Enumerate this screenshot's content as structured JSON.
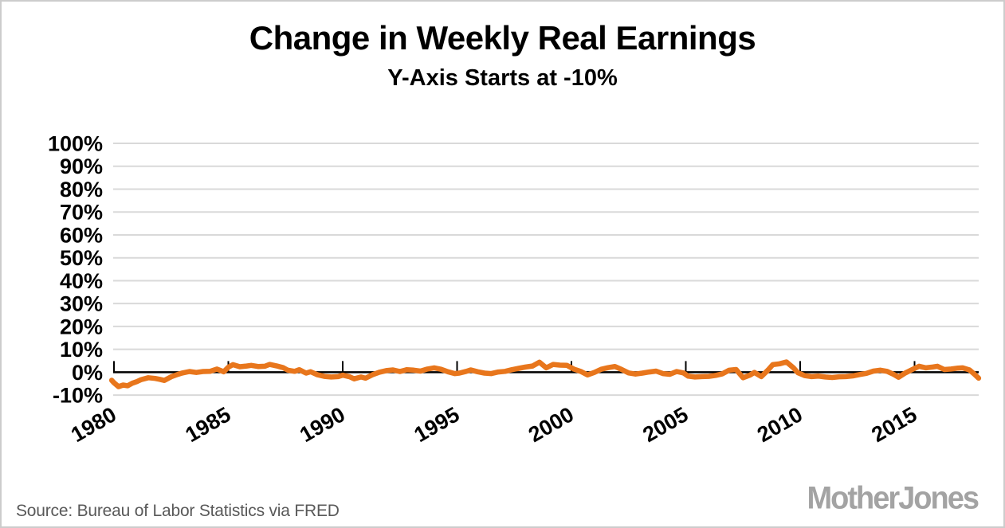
{
  "header": {
    "title": "Change in Weekly Real Earnings",
    "subtitle": "Y-Axis Starts at -10%",
    "text_color": "#000000"
  },
  "footer": {
    "source": "Source: Bureau of Labor Statistics via FRED",
    "source_color": "#595959",
    "logo": "MotherJones",
    "logo_color": "#a3a3a3"
  },
  "chart_data": {
    "type": "line",
    "title": "Change in Weekly Real Earnings",
    "subtitle": "Y-Axis Starts at -10%",
    "series_name": "12-month change in weekly real earnings (%)",
    "line_color": "#e8761c",
    "line_width": 6.5,
    "gridline_color": "#d9d9d9",
    "axis_color": "#000000",
    "label_color": "#000000",
    "grid": "horizontal",
    "legend": "none",
    "xlim": [
      1979.9,
      2017.9
    ],
    "ylim": [
      -10,
      100
    ],
    "y_ticks": [
      100,
      90,
      80,
      70,
      60,
      50,
      40,
      30,
      20,
      10,
      0,
      -10
    ],
    "y_tick_labels": [
      "100%",
      "90%",
      "80%",
      "70%",
      "60%",
      "50%",
      "40%",
      "30%",
      "20%",
      "10%",
      "0%",
      "-10%"
    ],
    "x_ticks": [
      1980,
      1985,
      1990,
      1995,
      2000,
      2005,
      2010,
      2015
    ],
    "x_tick_labels": [
      "1980",
      "1985",
      "1990",
      "1995",
      "2000",
      "2005",
      "2010",
      "2015"
    ],
    "points": [
      [
        1979.9,
        -3.5
      ],
      [
        1980.0,
        -4.6
      ],
      [
        1980.2,
        -6.3
      ],
      [
        1980.4,
        -5.6
      ],
      [
        1980.6,
        -5.9
      ],
      [
        1980.8,
        -4.8
      ],
      [
        1981.0,
        -4.1
      ],
      [
        1981.2,
        -3.2
      ],
      [
        1981.5,
        -2.4
      ],
      [
        1981.8,
        -2.7
      ],
      [
        1982.0,
        -3.1
      ],
      [
        1982.2,
        -3.6
      ],
      [
        1982.5,
        -2.0
      ],
      [
        1982.8,
        -0.9
      ],
      [
        1983.0,
        -0.3
      ],
      [
        1983.3,
        0.3
      ],
      [
        1983.6,
        -0.1
      ],
      [
        1983.9,
        0.3
      ],
      [
        1984.2,
        0.4
      ],
      [
        1984.5,
        1.4
      ],
      [
        1984.8,
        0.2
      ],
      [
        1985.0,
        2.2
      ],
      [
        1985.2,
        3.3
      ],
      [
        1985.5,
        2.4
      ],
      [
        1985.8,
        2.7
      ],
      [
        1986.0,
        3.0
      ],
      [
        1986.3,
        2.5
      ],
      [
        1986.6,
        2.6
      ],
      [
        1986.8,
        3.4
      ],
      [
        1987.1,
        2.8
      ],
      [
        1987.4,
        2.0
      ],
      [
        1987.6,
        0.9
      ],
      [
        1987.9,
        0.4
      ],
      [
        1988.1,
        1.1
      ],
      [
        1988.4,
        -0.4
      ],
      [
        1988.6,
        0.2
      ],
      [
        1988.9,
        -1.1
      ],
      [
        1989.2,
        -1.8
      ],
      [
        1989.5,
        -2.1
      ],
      [
        1989.8,
        -1.9
      ],
      [
        1990.0,
        -1.3
      ],
      [
        1990.3,
        -2.0
      ],
      [
        1990.5,
        -2.9
      ],
      [
        1990.8,
        -2.1
      ],
      [
        1991.0,
        -2.6
      ],
      [
        1991.3,
        -1.1
      ],
      [
        1991.6,
        0.0
      ],
      [
        1991.9,
        0.7
      ],
      [
        1992.2,
        1.0
      ],
      [
        1992.5,
        0.3
      ],
      [
        1992.8,
        1.1
      ],
      [
        1993.1,
        0.9
      ],
      [
        1993.4,
        0.5
      ],
      [
        1993.7,
        1.4
      ],
      [
        1994.0,
        1.9
      ],
      [
        1994.3,
        1.3
      ],
      [
        1994.6,
        0.2
      ],
      [
        1994.9,
        -0.6
      ],
      [
        1995.1,
        -0.4
      ],
      [
        1995.4,
        0.4
      ],
      [
        1995.6,
        1.0
      ],
      [
        1995.9,
        0.2
      ],
      [
        1996.2,
        -0.4
      ],
      [
        1996.5,
        -0.6
      ],
      [
        1996.8,
        0.1
      ],
      [
        1997.1,
        0.4
      ],
      [
        1997.4,
        1.1
      ],
      [
        1997.7,
        1.7
      ],
      [
        1998.0,
        2.3
      ],
      [
        1998.3,
        2.7
      ],
      [
        1998.6,
        4.4
      ],
      [
        1998.9,
        1.9
      ],
      [
        1999.2,
        3.4
      ],
      [
        1999.5,
        3.1
      ],
      [
        1999.8,
        3.0
      ],
      [
        2000.1,
        1.4
      ],
      [
        2000.4,
        0.4
      ],
      [
        2000.7,
        -1.2
      ],
      [
        2001.0,
        -0.1
      ],
      [
        2001.3,
        1.3
      ],
      [
        2001.6,
        2.0
      ],
      [
        2001.9,
        2.5
      ],
      [
        2002.2,
        1.2
      ],
      [
        2002.5,
        -0.3
      ],
      [
        2002.8,
        -0.8
      ],
      [
        2003.1,
        -0.4
      ],
      [
        2003.4,
        0.1
      ],
      [
        2003.7,
        0.5
      ],
      [
        2004.0,
        -0.6
      ],
      [
        2004.3,
        -0.9
      ],
      [
        2004.6,
        0.3
      ],
      [
        2004.9,
        -0.3
      ],
      [
        2005.1,
        -1.7
      ],
      [
        2005.4,
        -2.1
      ],
      [
        2005.7,
        -1.9
      ],
      [
        2006.0,
        -1.8
      ],
      [
        2006.3,
        -1.4
      ],
      [
        2006.6,
        -0.7
      ],
      [
        2006.9,
        0.9
      ],
      [
        2007.2,
        1.2
      ],
      [
        2007.5,
        -2.4
      ],
      [
        2007.8,
        -1.3
      ],
      [
        2008.0,
        -0.1
      ],
      [
        2008.3,
        -1.9
      ],
      [
        2008.6,
        1.0
      ],
      [
        2008.8,
        3.3
      ],
      [
        2009.1,
        3.7
      ],
      [
        2009.4,
        4.5
      ],
      [
        2009.7,
        2.0
      ],
      [
        2009.9,
        -0.2
      ],
      [
        2010.2,
        -1.5
      ],
      [
        2010.5,
        -1.9
      ],
      [
        2010.8,
        -1.7
      ],
      [
        2011.1,
        -2.1
      ],
      [
        2011.4,
        -2.3
      ],
      [
        2011.7,
        -2.0
      ],
      [
        2012.0,
        -1.9
      ],
      [
        2012.3,
        -1.6
      ],
      [
        2012.6,
        -1.0
      ],
      [
        2012.9,
        -0.5
      ],
      [
        2013.2,
        0.5
      ],
      [
        2013.5,
        0.9
      ],
      [
        2013.8,
        0.4
      ],
      [
        2014.1,
        -1.0
      ],
      [
        2014.3,
        -2.2
      ],
      [
        2014.6,
        -0.3
      ],
      [
        2014.9,
        1.2
      ],
      [
        2015.2,
        2.6
      ],
      [
        2015.5,
        1.9
      ],
      [
        2015.8,
        2.3
      ],
      [
        2016.0,
        2.6
      ],
      [
        2016.3,
        1.2
      ],
      [
        2016.6,
        1.4
      ],
      [
        2016.9,
        1.8
      ],
      [
        2017.1,
        1.9
      ],
      [
        2017.4,
        1.0
      ],
      [
        2017.6,
        -0.7
      ],
      [
        2017.8,
        -2.6
      ]
    ]
  }
}
